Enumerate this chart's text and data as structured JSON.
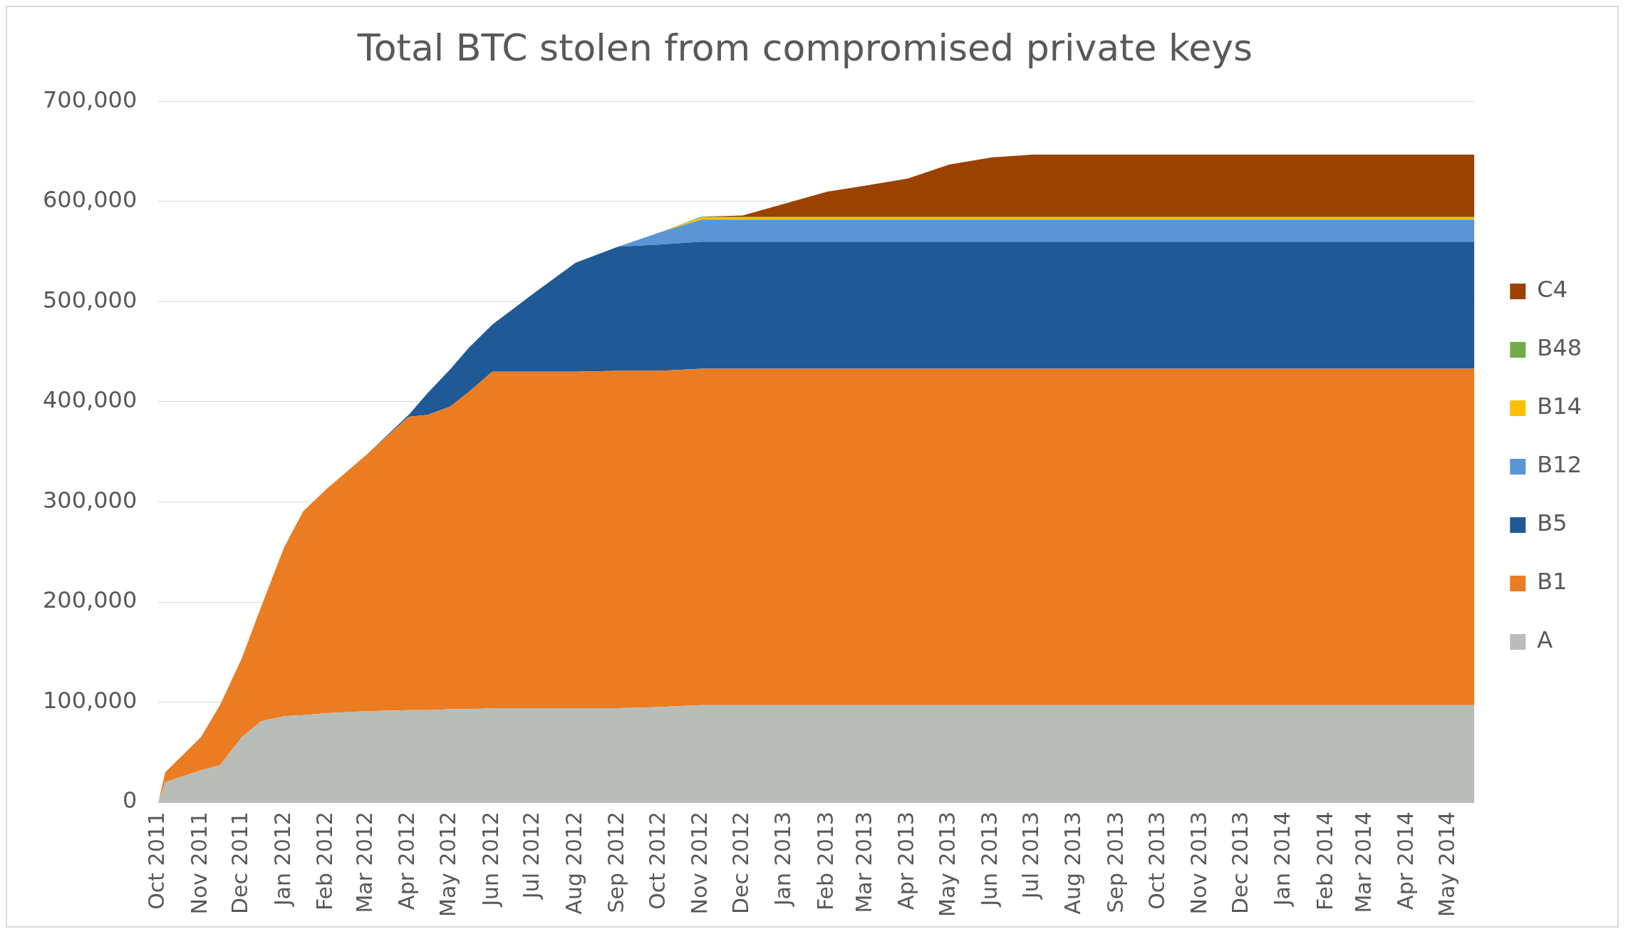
{
  "chart_data": {
    "type": "area",
    "title": "Total BTC stolen from compromised private keys",
    "stacked": true,
    "x": [
      "2011-10-01",
      "2011-10-06",
      "2011-11-01",
      "2011-11-15",
      "2011-12-01",
      "2011-12-15",
      "2012-01-01",
      "2012-01-15",
      "2012-02-01",
      "2012-03-01",
      "2012-04-01",
      "2012-04-15",
      "2012-05-01",
      "2012-05-15",
      "2012-06-01",
      "2012-07-01",
      "2012-08-01",
      "2012-09-01",
      "2012-10-01",
      "2012-11-01",
      "2012-12-01",
      "2013-01-01",
      "2013-02-01",
      "2013-03-01",
      "2013-04-01",
      "2013-05-01",
      "2013-06-01",
      "2013-07-01",
      "2014-05-20"
    ],
    "series": [
      {
        "name": "A",
        "color": "#b8bdb7",
        "values": [
          0,
          20000,
          32000,
          37000,
          65000,
          81000,
          86000,
          87000,
          89000,
          91000,
          92000,
          92000,
          93000,
          93000,
          94000,
          94000,
          94000,
          94000,
          95000,
          97000,
          97000,
          97000,
          97000,
          97000,
          97000,
          97000,
          97000,
          97000,
          97000
        ]
      },
      {
        "name": "B1",
        "color": "#ec7c22",
        "values": [
          0,
          10000,
          33000,
          60000,
          79000,
          114000,
          169000,
          204000,
          224000,
          256000,
          293000,
          295000,
          302000,
          317000,
          336000,
          336000,
          336000,
          337000,
          336000,
          336000,
          336000,
          336000,
          336000,
          336000,
          336000,
          336000,
          336000,
          336000,
          336000
        ]
      },
      {
        "name": "B5",
        "color": "#1f5a96",
        "values": [
          0,
          0,
          0,
          0,
          0,
          0,
          0,
          0,
          0,
          0,
          2000,
          22000,
          37000,
          44000,
          47000,
          78000,
          109000,
          124000,
          126000,
          127000,
          127000,
          127000,
          127000,
          127000,
          127000,
          127000,
          127000,
          127000,
          127000
        ]
      },
      {
        "name": "B12",
        "color": "#5b95d5",
        "values": [
          0,
          0,
          0,
          0,
          0,
          0,
          0,
          0,
          0,
          0,
          0,
          0,
          0,
          0,
          0,
          0,
          0,
          0,
          12000,
          22000,
          22000,
          22000,
          22000,
          22000,
          22000,
          22000,
          22000,
          22000,
          22000
        ]
      },
      {
        "name": "B14",
        "color": "#ffc000",
        "values": [
          0,
          0,
          0,
          0,
          0,
          0,
          0,
          0,
          0,
          0,
          0,
          0,
          0,
          0,
          0,
          0,
          0,
          0,
          0,
          2000,
          2000,
          2000,
          2000,
          2000,
          2000,
          2000,
          2000,
          2000,
          2000
        ]
      },
      {
        "name": "B48",
        "color": "#70ad47",
        "values": [
          0,
          0,
          0,
          0,
          0,
          0,
          0,
          0,
          0,
          0,
          0,
          0,
          0,
          0,
          0,
          0,
          0,
          0,
          0,
          1000,
          1000,
          1000,
          1000,
          1000,
          1000,
          1000,
          1000,
          1000,
          1000
        ]
      },
      {
        "name": "C4",
        "color": "#9b4200",
        "values": [
          0,
          0,
          0,
          0,
          0,
          0,
          0,
          0,
          0,
          0,
          0,
          0,
          0,
          0,
          0,
          0,
          0,
          0,
          0,
          0,
          1000,
          13000,
          25000,
          31000,
          38000,
          52000,
          59000,
          62000,
          62000
        ]
      }
    ],
    "xlim": [
      "2011-10-01",
      "2014-05-20"
    ],
    "xticks": [
      {
        "value": "2011-10-01",
        "label": "Oct 2011"
      },
      {
        "value": "2011-11-01",
        "label": "Nov 2011"
      },
      {
        "value": "2011-12-01",
        "label": "Dec 2011"
      },
      {
        "value": "2012-01-01",
        "label": "Jan 2012"
      },
      {
        "value": "2012-02-01",
        "label": "Feb 2012"
      },
      {
        "value": "2012-03-01",
        "label": "Mar 2012"
      },
      {
        "value": "2012-04-01",
        "label": "Apr 2012"
      },
      {
        "value": "2012-05-01",
        "label": "May 2012"
      },
      {
        "value": "2012-06-01",
        "label": "Jun 2012"
      },
      {
        "value": "2012-07-01",
        "label": "Jul 2012"
      },
      {
        "value": "2012-08-01",
        "label": "Aug 2012"
      },
      {
        "value": "2012-09-01",
        "label": "Sep 2012"
      },
      {
        "value": "2012-10-01",
        "label": "Oct 2012"
      },
      {
        "value": "2012-11-01",
        "label": "Nov 2012"
      },
      {
        "value": "2012-12-01",
        "label": "Dec 2012"
      },
      {
        "value": "2013-01-01",
        "label": "Jan 2013"
      },
      {
        "value": "2013-02-01",
        "label": "Feb 2013"
      },
      {
        "value": "2013-03-01",
        "label": "Mar 2013"
      },
      {
        "value": "2013-04-01",
        "label": "Apr 2013"
      },
      {
        "value": "2013-05-01",
        "label": "May 2013"
      },
      {
        "value": "2013-06-01",
        "label": "Jun 2013"
      },
      {
        "value": "2013-07-01",
        "label": "Jul 2013"
      },
      {
        "value": "2013-08-01",
        "label": "Aug 2013"
      },
      {
        "value": "2013-09-01",
        "label": "Sep 2013"
      },
      {
        "value": "2013-10-01",
        "label": "Oct 2013"
      },
      {
        "value": "2013-11-01",
        "label": "Nov 2013"
      },
      {
        "value": "2013-12-01",
        "label": "Dec 2013"
      },
      {
        "value": "2014-01-01",
        "label": "Jan 2014"
      },
      {
        "value": "2014-02-01",
        "label": "Feb 2014"
      },
      {
        "value": "2014-03-01",
        "label": "Mar 2014"
      },
      {
        "value": "2014-04-01",
        "label": "Apr 2014"
      },
      {
        "value": "2014-05-01",
        "label": "May 2014"
      }
    ],
    "ylim": [
      0,
      700000
    ],
    "yticks": [
      0,
      {
        "value": 100000,
        "label": "100,000"
      },
      {
        "value": 200000,
        "label": "200,000"
      },
      {
        "value": 300000,
        "label": "300,000"
      },
      {
        "value": 400000,
        "label": "400,000"
      },
      {
        "value": 500000,
        "label": "500,000"
      },
      {
        "value": 600000,
        "label": "600,000"
      },
      {
        "value": 700000,
        "label": "700,000"
      }
    ],
    "grid": "y",
    "legend": "right"
  }
}
